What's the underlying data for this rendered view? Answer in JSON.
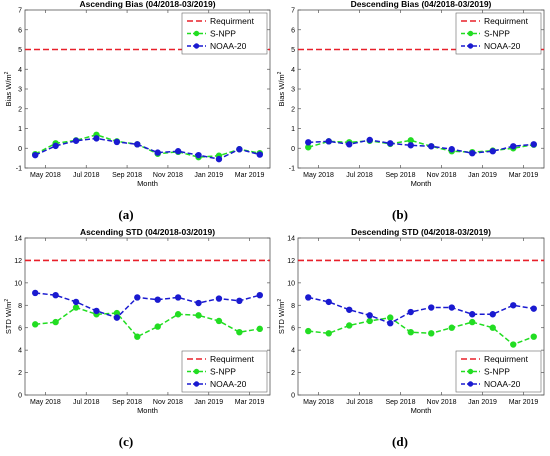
{
  "chart_data": [
    {
      "type": "line",
      "title": "Ascending Bias (04/2018-03/2019)",
      "caption": "(a)",
      "xlabel": "Month",
      "ylabel": "Bias W/m",
      "ylabel_sup": "2",
      "ylim": [
        -1,
        7
      ],
      "yticks": [
        "-1",
        "0",
        "1",
        "2",
        "3",
        "4",
        "5",
        "6",
        "7"
      ],
      "xlim": [
        0,
        12
      ],
      "xticks": [
        {
          "label": "May 2018",
          "x": 1
        },
        {
          "label": "Jul 2018",
          "x": 3
        },
        {
          "label": "Sep 2018",
          "x": 5
        },
        {
          "label": "Nov 2018",
          "x": 7
        },
        {
          "label": "Jan 2019",
          "x": 9
        },
        {
          "label": "Mar 2019",
          "x": 11
        }
      ],
      "x": [
        0.5,
        1.5,
        2.5,
        3.5,
        4.5,
        5.5,
        6.5,
        7.5,
        8.5,
        9.5,
        10.5,
        11.5
      ],
      "legend_position": "top-right",
      "series": [
        {
          "name": "Requirment",
          "style": "dashed",
          "color": "#e8202a",
          "values": [
            5,
            5,
            5,
            5,
            5,
            5,
            5,
            5,
            5,
            5,
            5,
            5
          ]
        },
        {
          "name": "S-NPP",
          "style": "marker-dashed",
          "color": "#22dd22",
          "values": [
            -0.3,
            0.25,
            0.4,
            0.68,
            0.35,
            0.2,
            -0.28,
            -0.18,
            -0.45,
            -0.38,
            -0.05,
            -0.25
          ]
        },
        {
          "name": "NOAA-20",
          "style": "marker-dashed",
          "color": "#1a1ad0",
          "values": [
            -0.35,
            0.12,
            0.38,
            0.5,
            0.32,
            0.2,
            -0.22,
            -0.15,
            -0.35,
            -0.55,
            -0.05,
            -0.32
          ]
        }
      ]
    },
    {
      "type": "line",
      "title": "Descending Bias (04/2018-03/2019)",
      "caption": "(b)",
      "xlabel": "Month",
      "ylabel": "Bias W/m",
      "ylabel_sup": "2",
      "ylim": [
        -1,
        7
      ],
      "yticks": [
        "-1",
        "0",
        "1",
        "2",
        "3",
        "4",
        "5",
        "6",
        "7"
      ],
      "xlim": [
        0,
        12
      ],
      "xticks": [
        {
          "label": "May 2018",
          "x": 1
        },
        {
          "label": "Jul 2018",
          "x": 3
        },
        {
          "label": "Sep 2018",
          "x": 5
        },
        {
          "label": "Nov 2018",
          "x": 7
        },
        {
          "label": "Jan 2019",
          "x": 9
        },
        {
          "label": "Mar 2019",
          "x": 11
        }
      ],
      "x": [
        0.5,
        1.5,
        2.5,
        3.5,
        4.5,
        5.5,
        6.5,
        7.5,
        8.5,
        9.5,
        10.5,
        11.5
      ],
      "legend_position": "top-right",
      "series": [
        {
          "name": "Requirment",
          "style": "dashed",
          "color": "#e8202a",
          "values": [
            5,
            5,
            5,
            5,
            5,
            5,
            5,
            5,
            5,
            5,
            5,
            5
          ]
        },
        {
          "name": "S-NPP",
          "style": "marker-dashed",
          "color": "#22dd22",
          "values": [
            0.05,
            0.35,
            0.3,
            0.38,
            0.22,
            0.4,
            0.1,
            -0.15,
            -0.2,
            -0.12,
            0.0,
            0.18
          ]
        },
        {
          "name": "NOAA-20",
          "style": "marker-dashed",
          "color": "#1a1ad0",
          "values": [
            0.3,
            0.35,
            0.2,
            0.42,
            0.25,
            0.15,
            0.1,
            -0.05,
            -0.25,
            -0.15,
            0.1,
            0.2
          ]
        }
      ]
    },
    {
      "type": "line",
      "title": "Ascending STD (04/2018-03/2019)",
      "caption": "(c)",
      "xlabel": "Month",
      "ylabel": "STD W/m",
      "ylabel_sup": "2",
      "ylim": [
        0,
        14
      ],
      "yticks": [
        "0",
        "2",
        "4",
        "6",
        "8",
        "10",
        "12",
        "14"
      ],
      "xlim": [
        0,
        12
      ],
      "xticks": [
        {
          "label": "May 2018",
          "x": 1
        },
        {
          "label": "Jul 2018",
          "x": 3
        },
        {
          "label": "Sep 2018",
          "x": 5
        },
        {
          "label": "Nov 2018",
          "x": 7
        },
        {
          "label": "Jan 2019",
          "x": 9
        },
        {
          "label": "Mar 2019",
          "x": 11
        }
      ],
      "x": [
        0.5,
        1.5,
        2.5,
        3.5,
        4.5,
        5.5,
        6.5,
        7.5,
        8.5,
        9.5,
        10.5,
        11.5
      ],
      "legend_position": "bottom-right",
      "series": [
        {
          "name": "Requirment",
          "style": "dashed",
          "color": "#e8202a",
          "values": [
            12,
            12,
            12,
            12,
            12,
            12,
            12,
            12,
            12,
            12,
            12,
            12
          ]
        },
        {
          "name": "S-NPP",
          "style": "marker-dashed",
          "color": "#22dd22",
          "values": [
            6.3,
            6.5,
            7.8,
            7.2,
            7.3,
            5.2,
            6.1,
            7.2,
            7.1,
            6.6,
            5.6,
            5.9
          ]
        },
        {
          "name": "NOAA-20",
          "style": "marker-dashed",
          "color": "#1a1ad0",
          "values": [
            9.1,
            8.9,
            8.3,
            7.5,
            6.9,
            8.7,
            8.5,
            8.7,
            8.2,
            8.6,
            8.4,
            8.9
          ]
        }
      ]
    },
    {
      "type": "line",
      "title": "Descending STD (04/2018-03/2019)",
      "caption": "(d)",
      "xlabel": "Month",
      "ylabel": "STD W/m",
      "ylabel_sup": "2",
      "ylim": [
        0,
        14
      ],
      "yticks": [
        "0",
        "2",
        "4",
        "6",
        "8",
        "10",
        "12",
        "14"
      ],
      "xlim": [
        0,
        12
      ],
      "xticks": [
        {
          "label": "May 2018",
          "x": 1
        },
        {
          "label": "Jul 2018",
          "x": 3
        },
        {
          "label": "Sep 2018",
          "x": 5
        },
        {
          "label": "Nov 2018",
          "x": 7
        },
        {
          "label": "Jan 2019",
          "x": 9
        },
        {
          "label": "Mar 2019",
          "x": 11
        }
      ],
      "x": [
        0.5,
        1.5,
        2.5,
        3.5,
        4.5,
        5.5,
        6.5,
        7.5,
        8.5,
        9.5,
        10.5,
        11.5
      ],
      "legend_position": "bottom-right",
      "series": [
        {
          "name": "Requirment",
          "style": "dashed",
          "color": "#e8202a",
          "values": [
            12,
            12,
            12,
            12,
            12,
            12,
            12,
            12,
            12,
            12,
            12,
            12
          ]
        },
        {
          "name": "S-NPP",
          "style": "marker-dashed",
          "color": "#22dd22",
          "values": [
            5.7,
            5.5,
            6.2,
            6.6,
            6.9,
            5.6,
            5.5,
            6.0,
            6.5,
            6.0,
            4.5,
            5.2
          ]
        },
        {
          "name": "NOAA-20",
          "style": "marker-dashed",
          "color": "#1a1ad0",
          "values": [
            8.7,
            8.3,
            7.6,
            7.1,
            6.4,
            7.4,
            7.8,
            7.8,
            7.2,
            7.2,
            8.0,
            7.7
          ]
        }
      ]
    }
  ]
}
